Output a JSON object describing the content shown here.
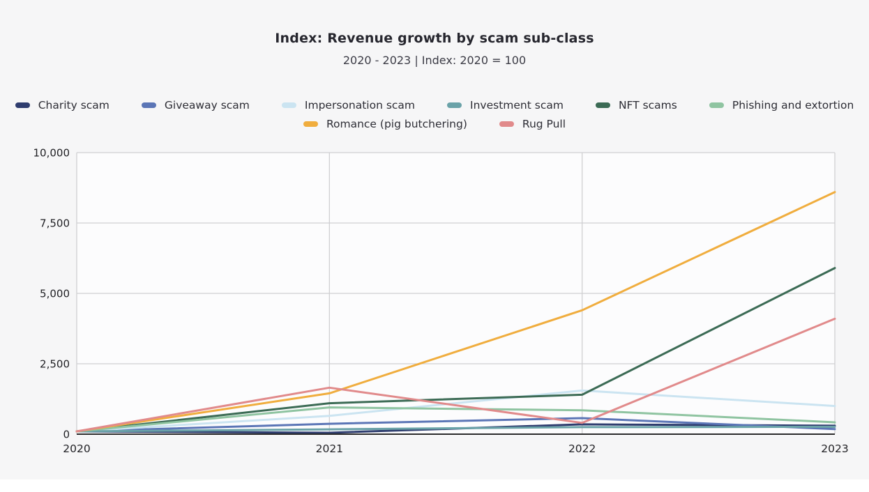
{
  "header": {
    "title": "Index: Revenue growth by scam sub-class",
    "subtitle": "2020 - 2023 | Index: 2020 = 100"
  },
  "chart_data": {
    "type": "line",
    "title": "Index: Revenue growth by scam sub-class",
    "subtitle": "2020 - 2023 | Index: 2020 = 100",
    "x": [
      "2020",
      "2021",
      "2022",
      "2023"
    ],
    "series": [
      {
        "name": "Charity scam",
        "color": "#2e3c6e",
        "values": [
          100,
          50,
          350,
          300
        ]
      },
      {
        "name": "Giveaway scam",
        "color": "#5b75b6",
        "values": [
          100,
          370,
          570,
          180
        ]
      },
      {
        "name": "Impersonation scam",
        "color": "#cbe4f1",
        "values": [
          100,
          650,
          1550,
          1000
        ]
      },
      {
        "name": "Investment scam",
        "color": "#6aa2a8",
        "values": [
          100,
          170,
          250,
          260
        ]
      },
      {
        "name": "NFT scams",
        "color": "#3c6b55",
        "values": [
          100,
          1100,
          1400,
          5900
        ]
      },
      {
        "name": "Phishing and extortion",
        "color": "#8fc4a1",
        "values": [
          100,
          950,
          850,
          420
        ]
      },
      {
        "name": "Romance (pig butchering)",
        "color": "#f0ad3e",
        "values": [
          100,
          1450,
          4400,
          8600
        ]
      },
      {
        "name": "Rug Pull",
        "color": "#e18a8b",
        "values": [
          100,
          1650,
          400,
          4100
        ]
      }
    ],
    "ylim": [
      0,
      10000
    ],
    "y_ticks": [
      "0",
      "2,500",
      "5,000",
      "7,500",
      "10,000"
    ],
    "x_ticks": [
      "2020",
      "2021",
      "2022",
      "2023"
    ],
    "grid": true,
    "legend_position": "top",
    "legend_rows": [
      6,
      2
    ]
  },
  "colors": {
    "page_background": "#f6f6f7",
    "plot_background": "#fcfcfd",
    "gridline": "#cfcfd2",
    "axis": "#2b2b2b",
    "tick_text": "#1f1f23"
  }
}
